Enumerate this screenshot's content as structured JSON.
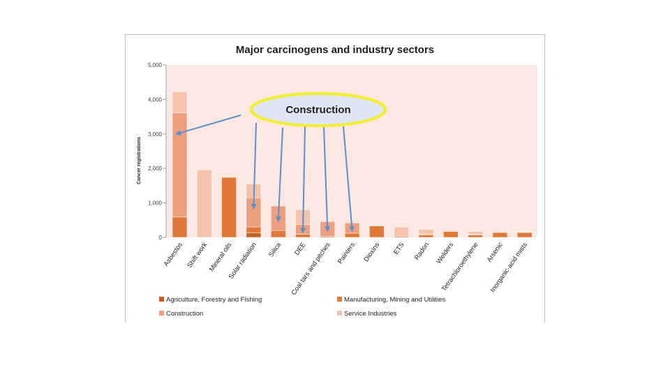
{
  "chart_data": {
    "type": "bar",
    "stacked": true,
    "title": "Major carcinogens and industry sectors",
    "xlabel": "",
    "ylabel": "Cancer registrations",
    "ylim": [
      0,
      5000
    ],
    "yticks": [
      "0",
      "1,000",
      "2,000",
      "3,000",
      "4,000",
      "5,000"
    ],
    "yticks_values": [
      0,
      1000,
      2000,
      3000,
      4000,
      5000
    ],
    "grid": false,
    "legend_position": "bottom",
    "categories": [
      "Asbestos",
      "Shift work",
      "Mineral oils",
      "Solar radiation",
      "Silica",
      "DEE",
      "Coal tars and pitches",
      "Painters",
      "Dioxins",
      "ETS",
      "Radon",
      "Welders",
      "Tetrachloroethylene",
      "Arsenic",
      "Inorganic-acid mists"
    ],
    "series": [
      {
        "name": "Agriculture, Forestry and Fishing",
        "color": "#c0622a",
        "values": [
          0,
          0,
          0,
          130,
          0,
          0,
          0,
          0,
          0,
          0,
          0,
          0,
          0,
          0,
          0
        ]
      },
      {
        "name": "Manufacturing, Mining and Utilities",
        "color": "#e0783a",
        "values": [
          590,
          0,
          1740,
          170,
          200,
          90,
          30,
          120,
          330,
          30,
          70,
          170,
          70,
          140,
          140
        ]
      },
      {
        "name": "Construction",
        "color": "#eda080",
        "values": [
          3020,
          0,
          0,
          850,
          710,
          280,
          420,
          300,
          0,
          0,
          30,
          0,
          20,
          0,
          0
        ]
      },
      {
        "name": "Service Industries",
        "color": "#f5c3ad",
        "values": [
          610,
          1960,
          0,
          400,
          0,
          430,
          30,
          20,
          0,
          270,
          130,
          0,
          80,
          0,
          0
        ]
      }
    ],
    "annotation": {
      "text": "Construction"
    }
  }
}
